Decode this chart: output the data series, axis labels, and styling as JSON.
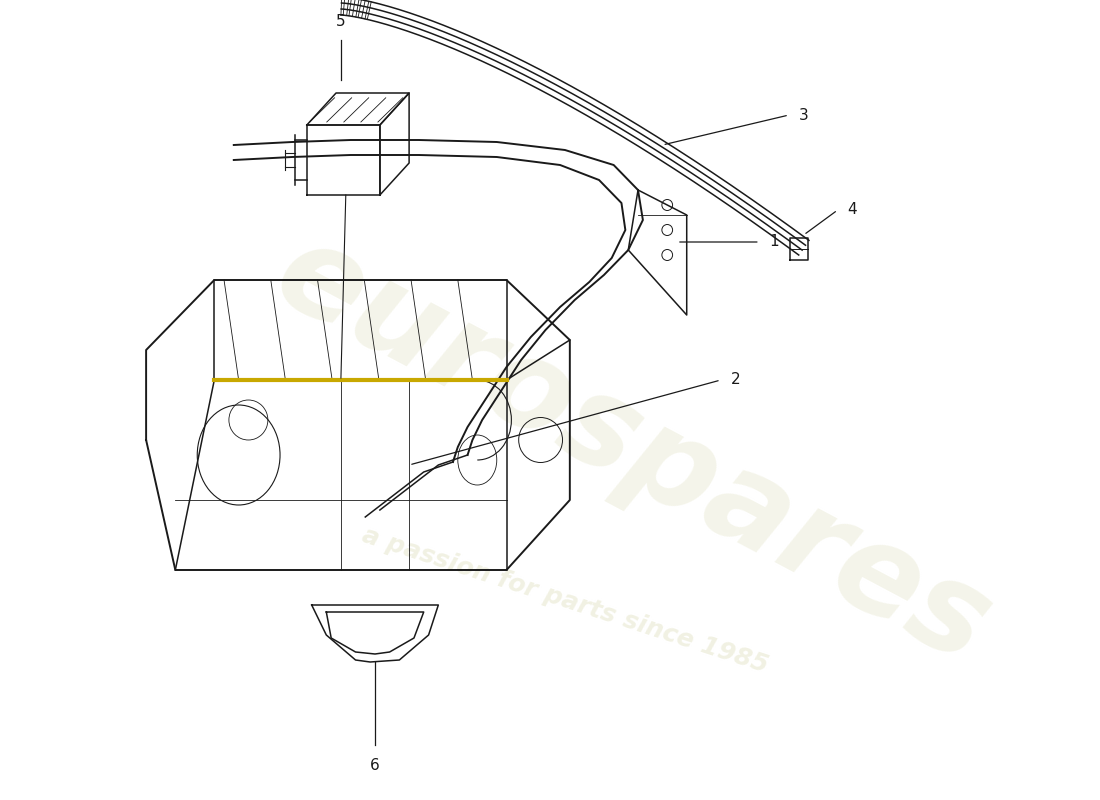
{
  "bg_color": "#ffffff",
  "line_color": "#1a1a1a",
  "label_color": "#1a1a1a",
  "wm_color": "#e8e8d0",
  "wm_text1": "eurospares",
  "wm_text2": "a passion for parts since 1985",
  "fig_width": 11.0,
  "fig_height": 8.0
}
